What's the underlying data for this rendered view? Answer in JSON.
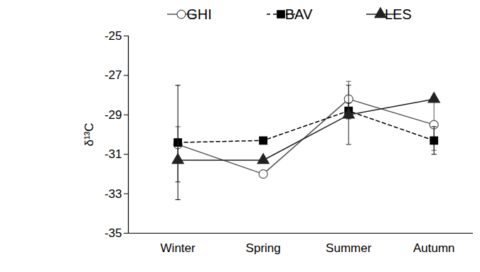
{
  "chart_data": {
    "type": "line",
    "categories": [
      "Winter",
      "Spring",
      "Summer",
      "Autumn"
    ],
    "y_label": "δ¹³C",
    "ylim": [
      -35,
      -25
    ],
    "yticks": [
      -35,
      -33,
      -31,
      -29,
      -27,
      -25
    ],
    "grid": false,
    "legend": "top",
    "series": [
      {
        "name": "GHI",
        "color": "#555555",
        "marker": "open_circle",
        "line_style": "solid",
        "values": [
          -30.5,
          -32.0,
          -28.2,
          -29.5
        ],
        "errors": [
          0.9,
          null,
          0.9,
          1.3
        ]
      },
      {
        "name": "BAV",
        "color": "#000000",
        "marker": "square",
        "line_style": "dashed",
        "values": [
          -30.4,
          -30.3,
          -28.8,
          -30.3
        ],
        "errors": [
          2.9,
          null,
          0.4,
          0.7
        ]
      },
      {
        "name": "LES",
        "color": "#222222",
        "marker": "triangle",
        "line_style": "solid",
        "values": [
          -31.3,
          -31.3,
          -29.0,
          -28.2
        ],
        "errors": [
          1.1,
          null,
          1.5,
          null
        ]
      }
    ]
  }
}
